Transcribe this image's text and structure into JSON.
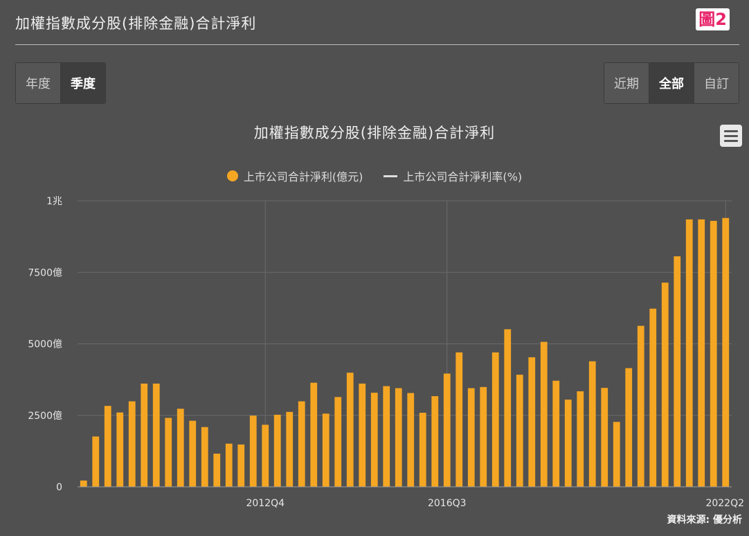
{
  "header": {
    "title": "加權指數成分股(排除金融)合計淨利",
    "badge": "圖2"
  },
  "period_toggle": [
    {
      "label": "年度",
      "active": false
    },
    {
      "label": "季度",
      "active": true
    }
  ],
  "range_toggle": [
    {
      "label": "近期",
      "active": false
    },
    {
      "label": "全部",
      "active": true
    },
    {
      "label": "自訂",
      "active": false
    }
  ],
  "menu_icon": "hamburger-menu-icon",
  "source": "資料來源: 優分析",
  "chart_data": {
    "type": "bar",
    "title": "加權指數成分股(排除金融)合計淨利",
    "legend": [
      {
        "name": "上市公司合計淨利(億元)",
        "color": "#f5a623",
        "marker": "dot"
      },
      {
        "name": "上市公司合計淨利率(%)",
        "color": "#dddddd",
        "marker": "line"
      }
    ],
    "legend_position": "top-center",
    "grid": true,
    "ylim": [
      0,
      10000
    ],
    "y_ticks": [
      {
        "value": 0,
        "label": "0"
      },
      {
        "value": 2500,
        "label": "2500億"
      },
      {
        "value": 5000,
        "label": "5000億"
      },
      {
        "value": 7500,
        "label": "7500億"
      },
      {
        "value": 10000,
        "label": "1兆"
      }
    ],
    "x_ticks": [
      {
        "index": 15,
        "label": "2012Q4"
      },
      {
        "index": 30,
        "label": "2016Q3"
      },
      {
        "index": 53,
        "label": "2022Q2"
      }
    ],
    "series": [
      {
        "name": "上市公司合計淨利(億元)",
        "color": "#f5a623",
        "values": [
          220,
          1760,
          2830,
          2600,
          2990,
          3610,
          3610,
          2410,
          2730,
          2310,
          2090,
          1160,
          1510,
          1480,
          2490,
          2170,
          2520,
          2620,
          2990,
          3640,
          2560,
          3140,
          3990,
          3610,
          3290,
          3520,
          3450,
          3280,
          2590,
          3170,
          3960,
          4700,
          3450,
          3490,
          4700,
          5510,
          3920,
          4530,
          5070,
          3710,
          3050,
          3340,
          4390,
          3460,
          2270,
          4150,
          5630,
          6230,
          7140,
          8060,
          9350,
          9350,
          9300,
          9400
        ]
      }
    ]
  }
}
